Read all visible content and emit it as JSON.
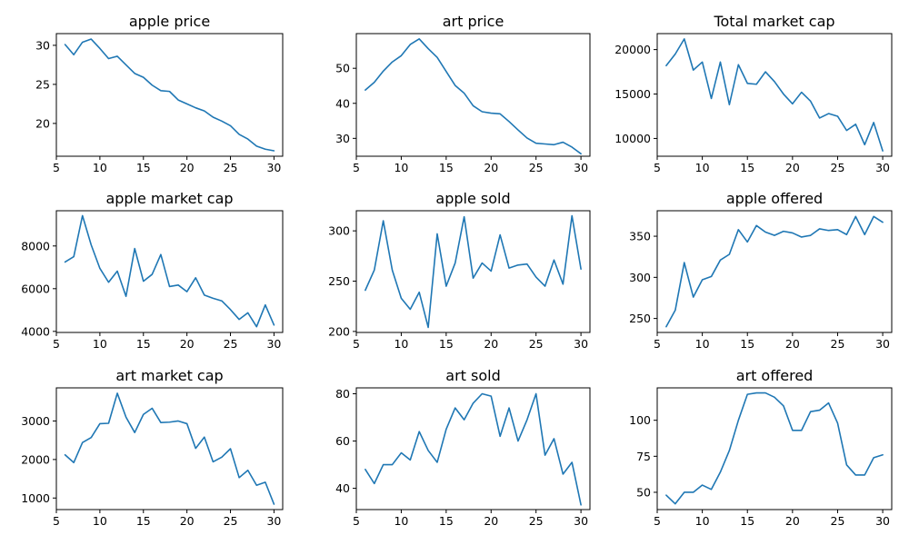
{
  "figure": {
    "line_color": "#1f77b4"
  },
  "chart_data": [
    {
      "type": "line",
      "title": "apple price",
      "x": [
        6,
        7,
        8,
        9,
        10,
        11,
        12,
        13,
        14,
        15,
        16,
        17,
        18,
        19,
        20,
        21,
        22,
        23,
        24,
        25,
        26,
        27,
        28,
        29,
        30
      ],
      "series": [
        {
          "values": [
            30.1,
            28.8,
            30.4,
            30.8,
            29.6,
            28.3,
            28.6,
            27.5,
            26.4,
            25.9,
            24.9,
            24.2,
            24.1,
            23.0,
            22.5,
            22.0,
            21.6,
            20.8,
            20.3,
            19.7,
            18.6,
            18.0,
            17.1,
            16.7,
            16.5
          ]
        }
      ],
      "xlim": [
        5,
        31
      ],
      "ylim": [
        15.8,
        31.5
      ],
      "xticks": [
        5,
        10,
        15,
        20,
        25,
        30
      ],
      "yticks": [
        20,
        25,
        30
      ],
      "grid": false
    },
    {
      "type": "line",
      "title": "art price",
      "x": [
        6,
        7,
        8,
        9,
        10,
        11,
        12,
        13,
        14,
        15,
        16,
        17,
        18,
        19,
        20,
        21,
        22,
        23,
        24,
        25,
        26,
        27,
        28,
        29,
        30
      ],
      "series": [
        {
          "values": [
            43.8,
            46.0,
            49.2,
            51.8,
            53.6,
            56.8,
            58.4,
            55.6,
            53.1,
            49.1,
            45.1,
            42.9,
            39.3,
            37.6,
            37.2,
            37.0,
            34.8,
            32.4,
            30.1,
            28.6,
            28.4,
            28.2,
            28.9,
            27.5,
            25.6
          ]
        }
      ],
      "xlim": [
        5,
        31
      ],
      "ylim": [
        24.9,
        59.9
      ],
      "xticks": [
        5,
        10,
        15,
        20,
        25,
        30
      ],
      "yticks": [
        30,
        40,
        50
      ],
      "grid": false
    },
    {
      "type": "line",
      "title": "Total market cap",
      "x": [
        6,
        7,
        8,
        9,
        10,
        11,
        12,
        13,
        14,
        15,
        16,
        17,
        18,
        19,
        20,
        21,
        22,
        23,
        24,
        25,
        26,
        27,
        28,
        29,
        30
      ],
      "series": [
        {
          "values": [
            18200,
            19500,
            21200,
            17700,
            18600,
            14500,
            18600,
            13800,
            18300,
            16200,
            16100,
            17500,
            16400,
            15000,
            13900,
            15200,
            14200,
            12300,
            12800,
            12500,
            10900,
            11600,
            9300,
            11800,
            8600
          ]
        }
      ],
      "xlim": [
        5,
        31
      ],
      "ylim": [
        8000,
        21800
      ],
      "xticks": [
        5,
        10,
        15,
        20,
        25,
        30
      ],
      "yticks": [
        10000,
        15000,
        20000
      ],
      "grid": false
    },
    {
      "type": "line",
      "title": "apple market cap",
      "x": [
        6,
        7,
        8,
        9,
        10,
        11,
        12,
        13,
        14,
        15,
        16,
        17,
        18,
        19,
        20,
        21,
        22,
        23,
        24,
        25,
        26,
        27,
        28,
        29,
        30
      ],
      "series": [
        {
          "values": [
            7250,
            7500,
            9420,
            8050,
            6950,
            6300,
            6820,
            5640,
            7880,
            6350,
            6670,
            7600,
            6100,
            6170,
            5860,
            6510,
            5700,
            5550,
            5430,
            5020,
            4560,
            4870,
            4220,
            5240,
            4300
          ]
        }
      ],
      "xlim": [
        5,
        31
      ],
      "ylim": [
        3950,
        9650
      ],
      "xticks": [
        5,
        10,
        15,
        20,
        25,
        30
      ],
      "yticks": [
        4000,
        6000,
        8000
      ],
      "grid": false
    },
    {
      "type": "line",
      "title": "apple sold",
      "x": [
        6,
        7,
        8,
        9,
        10,
        11,
        12,
        13,
        14,
        15,
        16,
        17,
        18,
        19,
        20,
        21,
        22,
        23,
        24,
        25,
        26,
        27,
        28,
        29,
        30
      ],
      "series": [
        {
          "values": [
            241,
            261,
            310,
            261,
            233,
            222,
            239,
            204,
            297,
            245,
            268,
            314,
            253,
            268,
            260,
            296,
            263,
            266,
            267,
            254,
            245,
            271,
            247,
            315,
            262
          ]
        }
      ],
      "xlim": [
        5,
        31
      ],
      "ylim": [
        199,
        320
      ],
      "xticks": [
        5,
        10,
        15,
        20,
        25,
        30
      ],
      "yticks": [
        200,
        250,
        300
      ],
      "grid": false
    },
    {
      "type": "line",
      "title": "apple offered",
      "x": [
        6,
        7,
        8,
        9,
        10,
        11,
        12,
        13,
        14,
        15,
        16,
        17,
        18,
        19,
        20,
        21,
        22,
        23,
        24,
        25,
        26,
        27,
        28,
        29,
        30
      ],
      "series": [
        {
          "values": [
            240,
            260,
            318,
            276,
            297,
            301,
            321,
            328,
            358,
            343,
            363,
            355,
            351,
            356,
            354,
            349,
            351,
            359,
            357,
            358,
            352,
            374,
            352,
            374,
            367
          ]
        }
      ],
      "xlim": [
        5,
        31
      ],
      "ylim": [
        233,
        381
      ],
      "xticks": [
        5,
        10,
        15,
        20,
        25,
        30
      ],
      "yticks": [
        250,
        300,
        350
      ],
      "grid": false
    },
    {
      "type": "line",
      "title": "art market cap",
      "x": [
        6,
        7,
        8,
        9,
        10,
        11,
        12,
        13,
        14,
        15,
        16,
        17,
        18,
        19,
        20,
        21,
        22,
        23,
        24,
        25,
        26,
        27,
        28,
        29,
        30
      ],
      "series": [
        {
          "values": [
            2120,
            1920,
            2440,
            2570,
            2930,
            2940,
            3720,
            3100,
            2700,
            3170,
            3330,
            2960,
            2970,
            3000,
            2930,
            2290,
            2580,
            1940,
            2060,
            2280,
            1530,
            1720,
            1330,
            1410,
            840
          ]
        }
      ],
      "xlim": [
        5,
        31
      ],
      "ylim": [
        700,
        3860
      ],
      "xticks": [
        5,
        10,
        15,
        20,
        25,
        30
      ],
      "yticks": [
        1000,
        2000,
        3000
      ],
      "grid": false
    },
    {
      "type": "line",
      "title": "art sold",
      "x": [
        6,
        7,
        8,
        9,
        10,
        11,
        12,
        13,
        14,
        15,
        16,
        17,
        18,
        19,
        20,
        21,
        22,
        23,
        24,
        25,
        26,
        27,
        28,
        29,
        30
      ],
      "series": [
        {
          "values": [
            48,
            42,
            50,
            50,
            55,
            52,
            64,
            56,
            51,
            65,
            74,
            69,
            76,
            80,
            79,
            62,
            74,
            60,
            69,
            80,
            54,
            61,
            46,
            51,
            33
          ]
        }
      ],
      "xlim": [
        5,
        31
      ],
      "ylim": [
        31,
        82.5
      ],
      "xticks": [
        5,
        10,
        15,
        20,
        25,
        30
      ],
      "yticks": [
        40,
        60,
        80
      ],
      "grid": false
    },
    {
      "type": "line",
      "title": "art offered",
      "x": [
        6,
        7,
        8,
        9,
        10,
        11,
        12,
        13,
        14,
        15,
        16,
        17,
        18,
        19,
        20,
        21,
        22,
        23,
        24,
        25,
        26,
        27,
        28,
        29,
        30
      ],
      "series": [
        {
          "values": [
            48,
            42,
            50,
            50,
            55,
            52,
            64,
            79,
            100,
            118,
            119,
            119,
            116,
            110,
            93,
            93,
            106,
            107,
            112,
            98,
            69,
            62,
            62,
            74,
            76
          ]
        }
      ],
      "xlim": [
        5,
        31
      ],
      "ylim": [
        38,
        122.5
      ],
      "xticks": [
        5,
        10,
        15,
        20,
        25,
        30
      ],
      "yticks": [
        50,
        75,
        100
      ],
      "grid": false
    }
  ]
}
